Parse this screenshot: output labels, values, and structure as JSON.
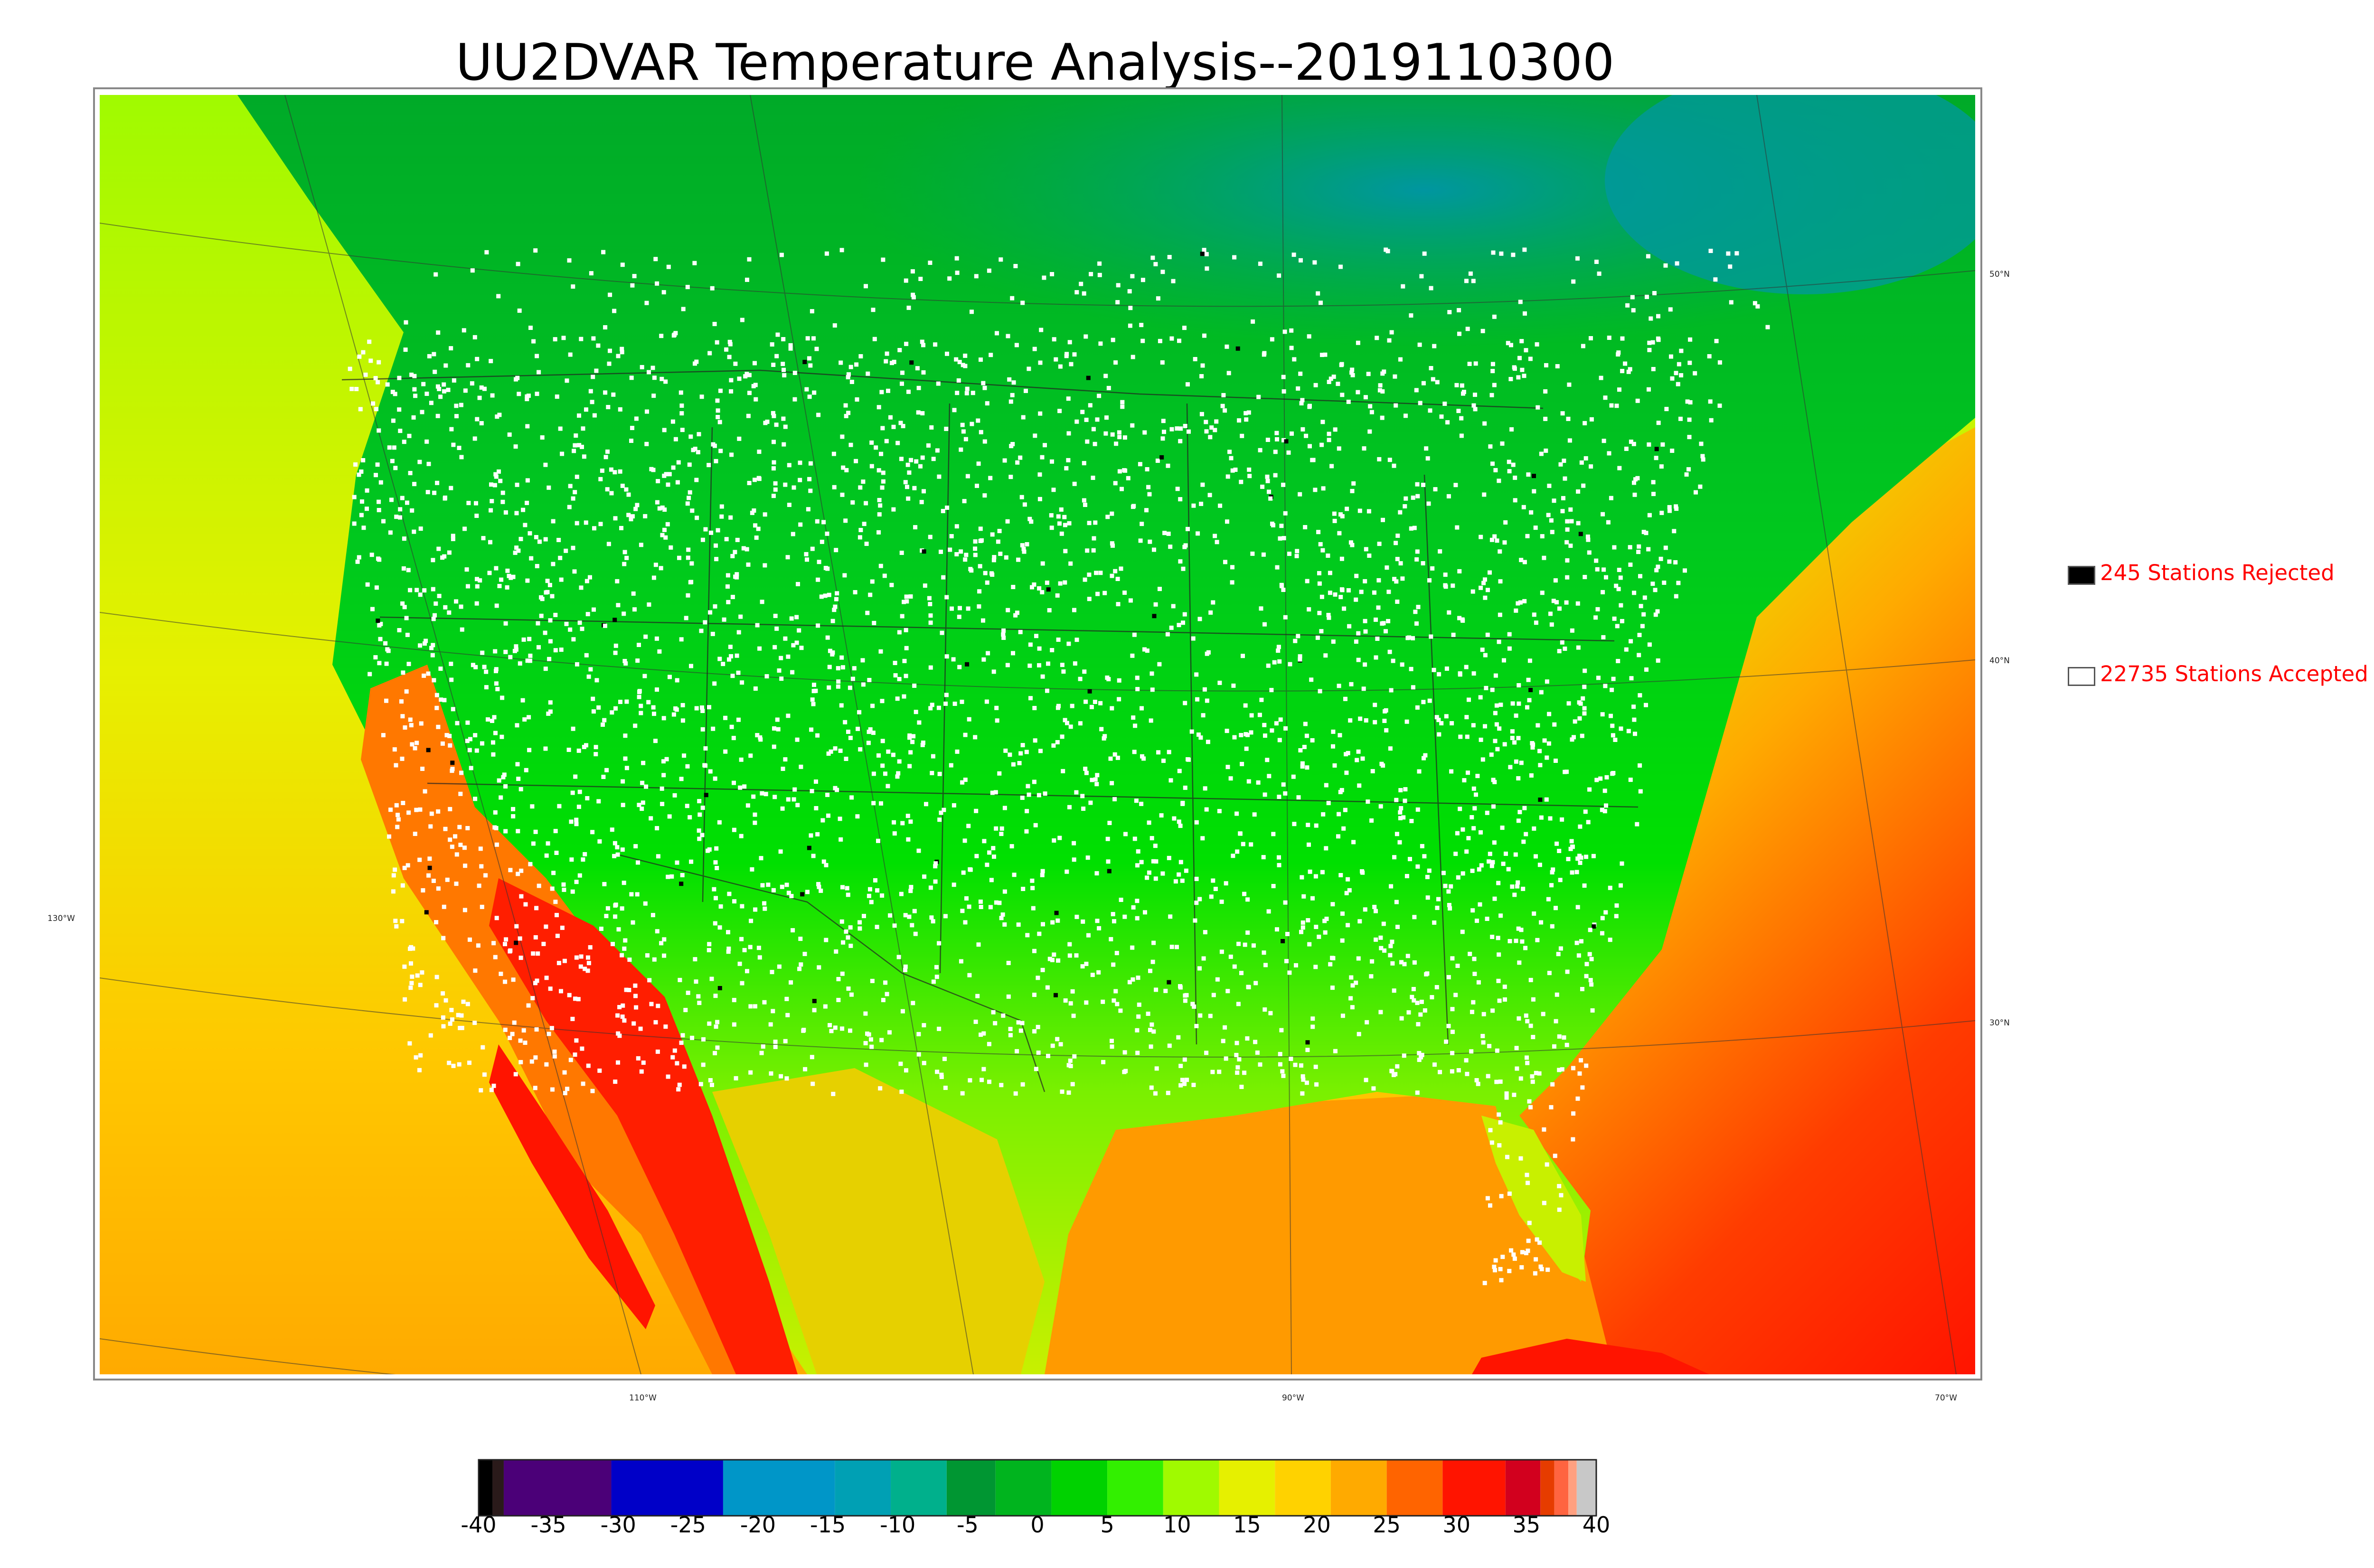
{
  "title": "UU2DVAR Temperature Analysis--2019110300",
  "legend": {
    "rejected": {
      "label": "245 Stations Rejected",
      "swatch_color": "#000000"
    },
    "accepted": {
      "label": "22735 Stations Accepted",
      "swatch_color": "#ffffff"
    },
    "text_color": "#ff0000"
  },
  "colorbar": {
    "ticks": [
      "-40",
      "-35",
      "-30",
      "-25",
      "-20",
      "-15",
      "-10",
      "-5",
      "0",
      "5",
      "10",
      "15",
      "20",
      "25",
      "30",
      "35",
      "40"
    ],
    "min": -40,
    "max": 40,
    "bands": [
      {
        "from": -40,
        "to": -39,
        "color": "#000000"
      },
      {
        "from": -39,
        "to": -38.2,
        "color": "#2a1a1a"
      },
      {
        "from": -38.2,
        "to": -30.5,
        "color": "#4b0078"
      },
      {
        "from": -30.5,
        "to": -22.5,
        "color": "#0000c8"
      },
      {
        "from": -22.5,
        "to": -14.5,
        "color": "#0096c8"
      },
      {
        "from": -14.5,
        "to": -10.5,
        "color": "#00a0b4"
      },
      {
        "from": -10.5,
        "to": -6.5,
        "color": "#00b08c"
      },
      {
        "from": -6.5,
        "to": -3,
        "color": "#009632"
      },
      {
        "from": -3,
        "to": 1,
        "color": "#00b41e"
      },
      {
        "from": 1,
        "to": 5,
        "color": "#00d200"
      },
      {
        "from": 5,
        "to": 9,
        "color": "#32f000"
      },
      {
        "from": 9,
        "to": 13,
        "color": "#a0fa00"
      },
      {
        "from": 13,
        "to": 17,
        "color": "#e6f000"
      },
      {
        "from": 17,
        "to": 21,
        "color": "#ffd200"
      },
      {
        "from": 21,
        "to": 25,
        "color": "#ffaa00"
      },
      {
        "from": 25,
        "to": 29,
        "color": "#ff6400"
      },
      {
        "from": 29,
        "to": 33.5,
        "color": "#ff1400"
      },
      {
        "from": 33.5,
        "to": 36,
        "color": "#d2001e"
      },
      {
        "from": 36,
        "to": 37,
        "color": "#e63c00"
      },
      {
        "from": 37,
        "to": 38,
        "color": "#ff6440"
      },
      {
        "from": 38,
        "to": 38.6,
        "color": "#ffa080"
      },
      {
        "from": 38.6,
        "to": 40,
        "color": "#c8c8c8"
      }
    ]
  },
  "geo_labels": {
    "lat_50": "50°N",
    "lat_40": "40°N",
    "lat_30": "30°N",
    "lon_130": "130°W",
    "lon_110": "110°W",
    "lon_90": "90°W",
    "lon_70": "70°W"
  },
  "colors": {
    "ocean_pacific": "#d8f000",
    "ocean_gulf": "#ff8a00",
    "ocean_atlantic_south": "#ff3000",
    "land_north": "#00b41e",
    "land_midwest": "#00d200",
    "land_south": "#a0fa00",
    "desert_hot": "#ff2000",
    "canada_cold": "#00a08c",
    "station_accepted": "#ffffff",
    "station_rejected": "#000000"
  }
}
